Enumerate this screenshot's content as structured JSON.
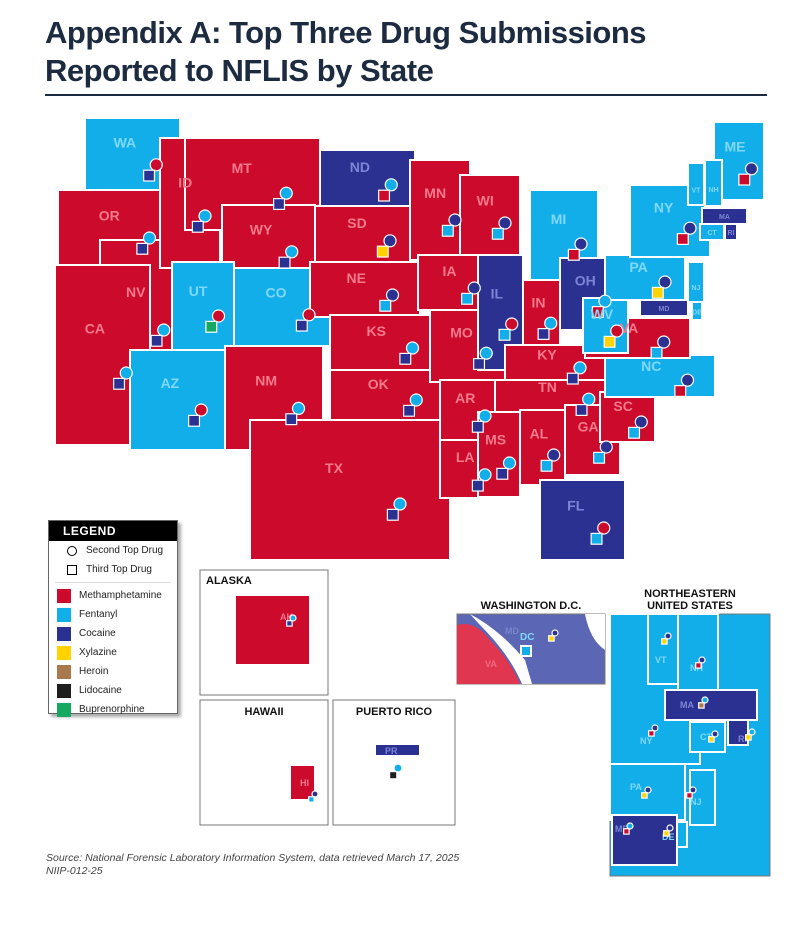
{
  "title": {
    "line1": "Appendix A: Top Three Drug Submissions",
    "line2": "Reported to NFLIS by State"
  },
  "legend": {
    "heading": "LEGEND",
    "second": "Second Top Drug",
    "third": "Third Top Drug",
    "drugs": [
      {
        "key": "M",
        "label": "Methamphetamine",
        "color": "#cc0a2c"
      },
      {
        "key": "F",
        "label": "Fentanyl",
        "color": "#12aeea"
      },
      {
        "key": "C",
        "label": "Cocaine",
        "color": "#2a3190"
      },
      {
        "key": "X",
        "label": "Xylazine",
        "color": "#ffd200"
      },
      {
        "key": "H",
        "label": "Heroin",
        "color": "#a9784e"
      },
      {
        "key": "L",
        "label": "Lidocaine",
        "color": "#1e1e1e"
      },
      {
        "key": "B",
        "label": "Buprenorphine",
        "color": "#15a85e"
      }
    ]
  },
  "states": [
    {
      "abbr": "WA",
      "top": "F",
      "second": "M",
      "third": "C"
    },
    {
      "abbr": "OR",
      "top": "M",
      "second": "F",
      "third": "C"
    },
    {
      "abbr": "NV",
      "top": "M",
      "second": "F",
      "third": "C"
    },
    {
      "abbr": "CA",
      "top": "M",
      "second": "F",
      "third": "C"
    },
    {
      "abbr": "ID",
      "top": "M",
      "second": "F",
      "third": "C"
    },
    {
      "abbr": "MT",
      "top": "M",
      "second": "F",
      "third": "C"
    },
    {
      "abbr": "WY",
      "top": "M",
      "second": "F",
      "third": "C"
    },
    {
      "abbr": "UT",
      "top": "F",
      "second": "M",
      "third": "B"
    },
    {
      "abbr": "CO",
      "top": "F",
      "second": "M",
      "third": "C"
    },
    {
      "abbr": "AZ",
      "top": "F",
      "second": "M",
      "third": "C"
    },
    {
      "abbr": "NM",
      "top": "M",
      "second": "F",
      "third": "C"
    },
    {
      "abbr": "TX",
      "top": "M",
      "second": "F",
      "third": "C"
    },
    {
      "abbr": "ND",
      "top": "C",
      "second": "F",
      "third": "M"
    },
    {
      "abbr": "SD",
      "top": "M",
      "second": "C",
      "third": "X"
    },
    {
      "abbr": "NE",
      "top": "M",
      "second": "C",
      "third": "F"
    },
    {
      "abbr": "KS",
      "top": "M",
      "second": "F",
      "third": "C"
    },
    {
      "abbr": "OK",
      "top": "M",
      "second": "F",
      "third": "C"
    },
    {
      "abbr": "MN",
      "top": "M",
      "second": "C",
      "third": "F"
    },
    {
      "abbr": "IA",
      "top": "M",
      "second": "C",
      "third": "F"
    },
    {
      "abbr": "MO",
      "top": "M",
      "second": "F",
      "third": "C"
    },
    {
      "abbr": "AR",
      "top": "M",
      "second": "F",
      "third": "C"
    },
    {
      "abbr": "LA",
      "top": "M",
      "second": "F",
      "third": "C"
    },
    {
      "abbr": "WI",
      "top": "M",
      "second": "C",
      "third": "F"
    },
    {
      "abbr": "IL",
      "top": "C",
      "second": "M",
      "third": "F"
    },
    {
      "abbr": "MI",
      "top": "F",
      "second": "C",
      "third": "M"
    },
    {
      "abbr": "IN",
      "top": "M",
      "second": "F",
      "third": "C"
    },
    {
      "abbr": "OH",
      "top": "C",
      "second": "F",
      "third": "M"
    },
    {
      "abbr": "KY",
      "top": "M",
      "second": "F",
      "third": "C"
    },
    {
      "abbr": "TN",
      "top": "M",
      "second": "F",
      "third": "C"
    },
    {
      "abbr": "MS",
      "top": "M",
      "second": "F",
      "third": "C"
    },
    {
      "abbr": "AL",
      "top": "M",
      "second": "C",
      "third": "F"
    },
    {
      "abbr": "GA",
      "top": "M",
      "second": "C",
      "third": "F"
    },
    {
      "abbr": "FL",
      "top": "C",
      "second": "M",
      "third": "F"
    },
    {
      "abbr": "SC",
      "top": "M",
      "second": "C",
      "third": "F"
    },
    {
      "abbr": "NC",
      "top": "F",
      "second": "C",
      "third": "M"
    },
    {
      "abbr": "VA",
      "top": "M",
      "second": "C",
      "third": "F"
    },
    {
      "abbr": "WV",
      "top": "F",
      "second": "M",
      "third": "X"
    },
    {
      "abbr": "PA",
      "top": "F",
      "second": "C",
      "third": "X"
    },
    {
      "abbr": "NY",
      "top": "F",
      "second": "C",
      "third": "M"
    },
    {
      "abbr": "ME",
      "top": "F",
      "second": "C",
      "third": "M"
    },
    {
      "abbr": "VT",
      "top": "F",
      "second": "C",
      "third": "X"
    },
    {
      "abbr": "NH",
      "top": "F",
      "second": "C",
      "third": "M"
    },
    {
      "abbr": "MA",
      "top": "C",
      "second": "F",
      "third": "H"
    },
    {
      "abbr": "CT",
      "top": "F",
      "second": "C",
      "third": "X"
    },
    {
      "abbr": "RI",
      "top": "C",
      "second": "F",
      "third": "X"
    },
    {
      "abbr": "NJ",
      "top": "F",
      "second": "C",
      "third": "M"
    },
    {
      "abbr": "DE",
      "top": "F",
      "second": "C",
      "third": "X"
    },
    {
      "abbr": "MD",
      "top": "C",
      "second": "F",
      "third": "M"
    },
    {
      "abbr": "DC",
      "top": "F",
      "second": "C",
      "third": "X"
    },
    {
      "abbr": "AK",
      "top": "M",
      "second": "F",
      "third": "C"
    },
    {
      "abbr": "HI",
      "top": "M",
      "second": "C",
      "third": "F"
    },
    {
      "abbr": "PR",
      "top": "C",
      "second": "F",
      "third": "L"
    }
  ],
  "insets": {
    "alaska": "ALASKA",
    "hawaii": "HAWAII",
    "puerto_rico": "PUERTO RICO",
    "dc": "WASHINGTON D.C.",
    "dc_md": "MD",
    "dc_va": "VA",
    "northeast_line1": "NORTHEASTERN",
    "northeast_line2": "UNITED STATES"
  },
  "source": {
    "line1": "Source: National Forensic Laboratory Information System, data retrieved March 17, 2025",
    "line2": "NIIP-012-25"
  }
}
